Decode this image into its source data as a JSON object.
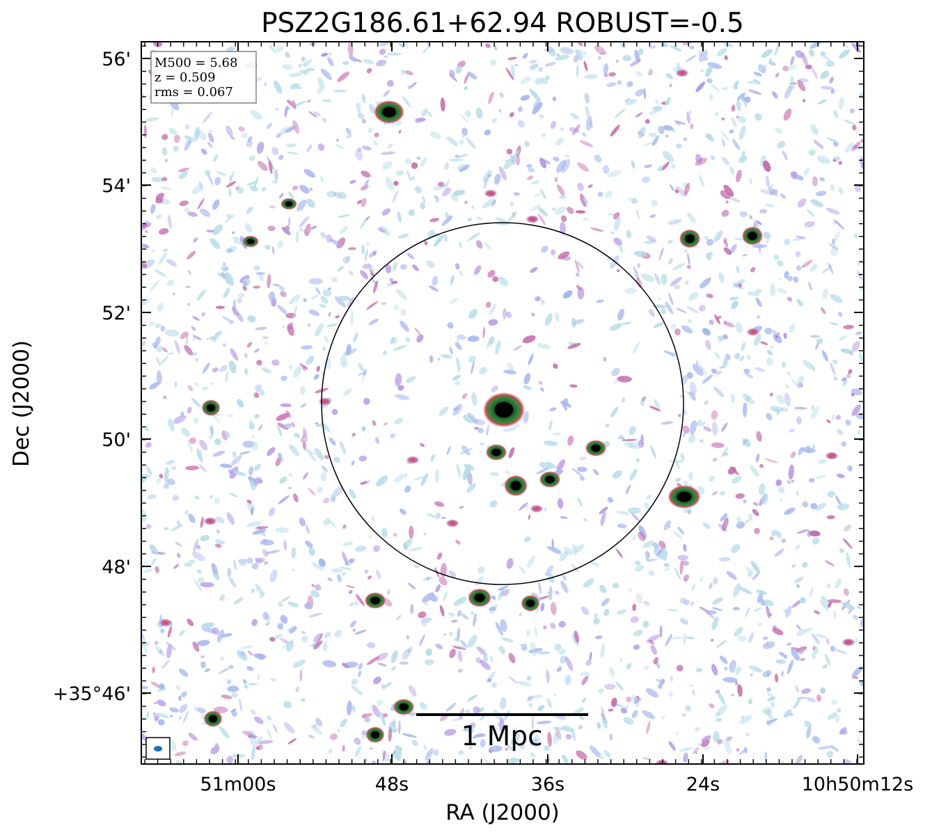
{
  "figure": {
    "title": "PSZ2G186.61+62.94 ROBUST=-0.5",
    "xlabel": "RA (J2000)",
    "ylabel": "Dec (J2000)",
    "x_ticks": [
      "51m00s",
      "48s",
      "36s",
      "24s",
      "10h50m12s"
    ],
    "y_ticks": [
      "56'",
      "54'",
      "52'",
      "50'",
      "48'",
      "+35°46'"
    ],
    "info": {
      "m500": "M500 = 5.68",
      "z": "z = 0.509",
      "rms": "rms = 0.067"
    },
    "scalebar_label": "1 Mpc",
    "colors": {
      "noise_light": "#b8dde9",
      "noise_blue": "#a9b8ee",
      "noise_purple": "#b79be3",
      "noise_magenta": "#c46fae",
      "source_red": "#c84a4a",
      "source_green": "#2e8b3e",
      "source_core": "#000000",
      "beam": "#1f6fb5"
    }
  }
}
